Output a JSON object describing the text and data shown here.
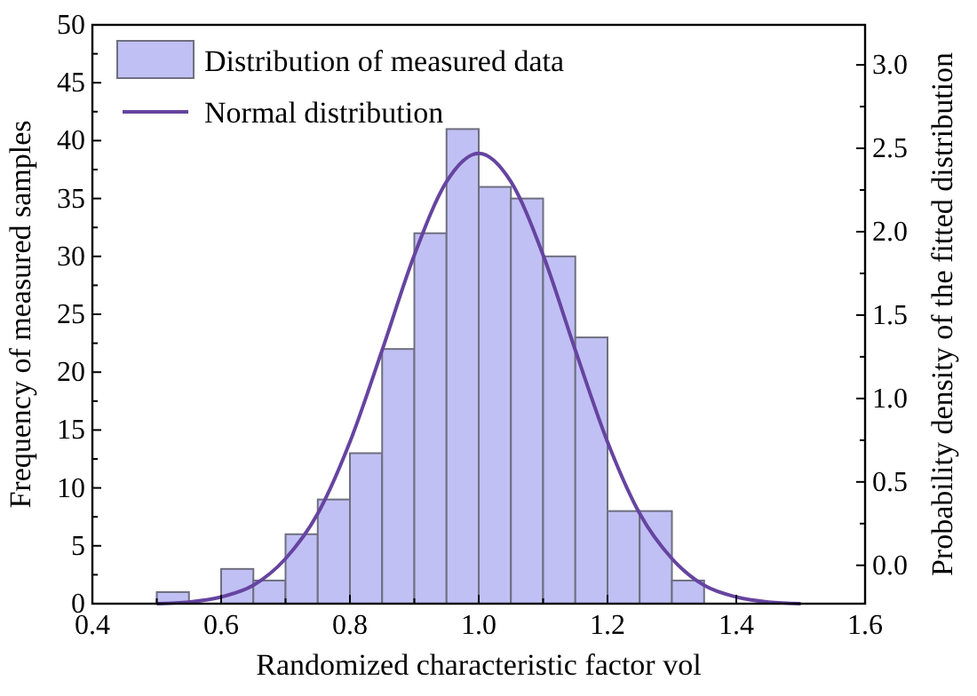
{
  "chart_data": {
    "type": "histogram",
    "xlabel": "Randomized characteristic factor vol",
    "ylabel": "Frequency of measured samples",
    "y2label": "Probability density of the fitted distribution",
    "bins": [
      0.5,
      0.55,
      0.6,
      0.65,
      0.7,
      0.75,
      0.8,
      0.85,
      0.9,
      0.95,
      1.0,
      1.05,
      1.1,
      1.15,
      1.2,
      1.25,
      1.3,
      1.35
    ],
    "series": [
      {
        "name": "Distribution of measured data",
        "color": "#c0c0f4",
        "values": [
          1,
          0,
          3,
          2,
          6,
          9,
          13,
          22,
          32,
          41,
          36,
          35,
          30,
          23,
          8,
          8,
          2
        ]
      },
      {
        "name": "Normal distribution",
        "type": "line",
        "axis": "y2",
        "color": "#6644a0",
        "x": [
          0.5,
          0.55,
          0.6,
          0.65,
          0.7,
          0.75,
          0.8,
          0.85,
          0.9,
          0.95,
          1.0,
          1.05,
          1.1,
          1.15,
          1.2,
          1.25,
          1.3,
          1.35,
          1.4,
          1.45,
          1.5
        ],
        "values": [
          -0.23,
          -0.22,
          -0.19,
          -0.12,
          0.04,
          0.31,
          0.74,
          1.29,
          1.86,
          2.3,
          2.47,
          2.3,
          1.86,
          1.29,
          0.74,
          0.31,
          0.04,
          -0.12,
          -0.19,
          -0.22,
          -0.23
        ]
      }
    ],
    "xlim": [
      0.4,
      1.6
    ],
    "xticks": [
      {
        "value": 0.4,
        "label": "0.4"
      },
      {
        "value": 0.6,
        "label": "0.6"
      },
      {
        "value": 0.8,
        "label": "0.8"
      },
      {
        "value": 1.0,
        "label": "1.0"
      },
      {
        "value": 1.2,
        "label": "1.2"
      },
      {
        "value": 1.4,
        "label": "1.4"
      },
      {
        "value": 1.6,
        "label": "1.6"
      }
    ],
    "ylim": [
      0,
      50
    ],
    "yticks": [
      0,
      5,
      10,
      15,
      20,
      25,
      30,
      35,
      40,
      45,
      50
    ],
    "y2lim": [
      -0.23,
      3.24
    ],
    "y2ticks": [
      {
        "value": 0,
        "label": "0.0"
      },
      {
        "value": 0.5,
        "label": "0.5"
      },
      {
        "value": 1.0,
        "label": "1.0"
      },
      {
        "value": 1.5,
        "label": "1.5"
      },
      {
        "value": 2.0,
        "label": "2.0"
      },
      {
        "value": 2.5,
        "label": "2.5"
      },
      {
        "value": 3.0,
        "label": "3.0"
      }
    ],
    "legend": "top left",
    "grid": false
  }
}
